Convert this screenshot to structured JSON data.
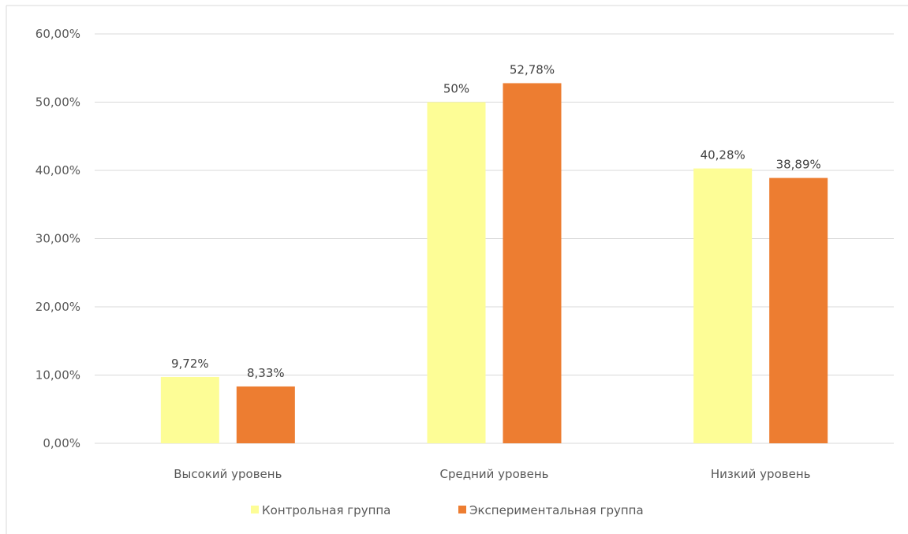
{
  "chart_data": {
    "type": "bar",
    "categories": [
      "Высокий уровень",
      "Средний уровень",
      "Низкий уровень"
    ],
    "series": [
      {
        "name": "Контрольная группа",
        "color": "#fdfd96",
        "values": [
          9.72,
          50,
          40.28
        ],
        "labels": [
          "9,72%",
          "50%",
          "40,28%"
        ]
      },
      {
        "name": "Экспериментальная группа",
        "color": "#ed7d31",
        "values": [
          8.33,
          52.78,
          38.89
        ],
        "labels": [
          "8,33%",
          "52,78%",
          "38,89%"
        ]
      }
    ],
    "ylim": [
      0,
      60
    ],
    "yticks": [
      0,
      10,
      20,
      30,
      40,
      50,
      60
    ],
    "ytick_labels": [
      "0,00%",
      "10,00%",
      "20,00%",
      "30,00%",
      "40,00%",
      "50,00%",
      "60,00%"
    ],
    "grid": true,
    "legend_position": "bottom"
  }
}
